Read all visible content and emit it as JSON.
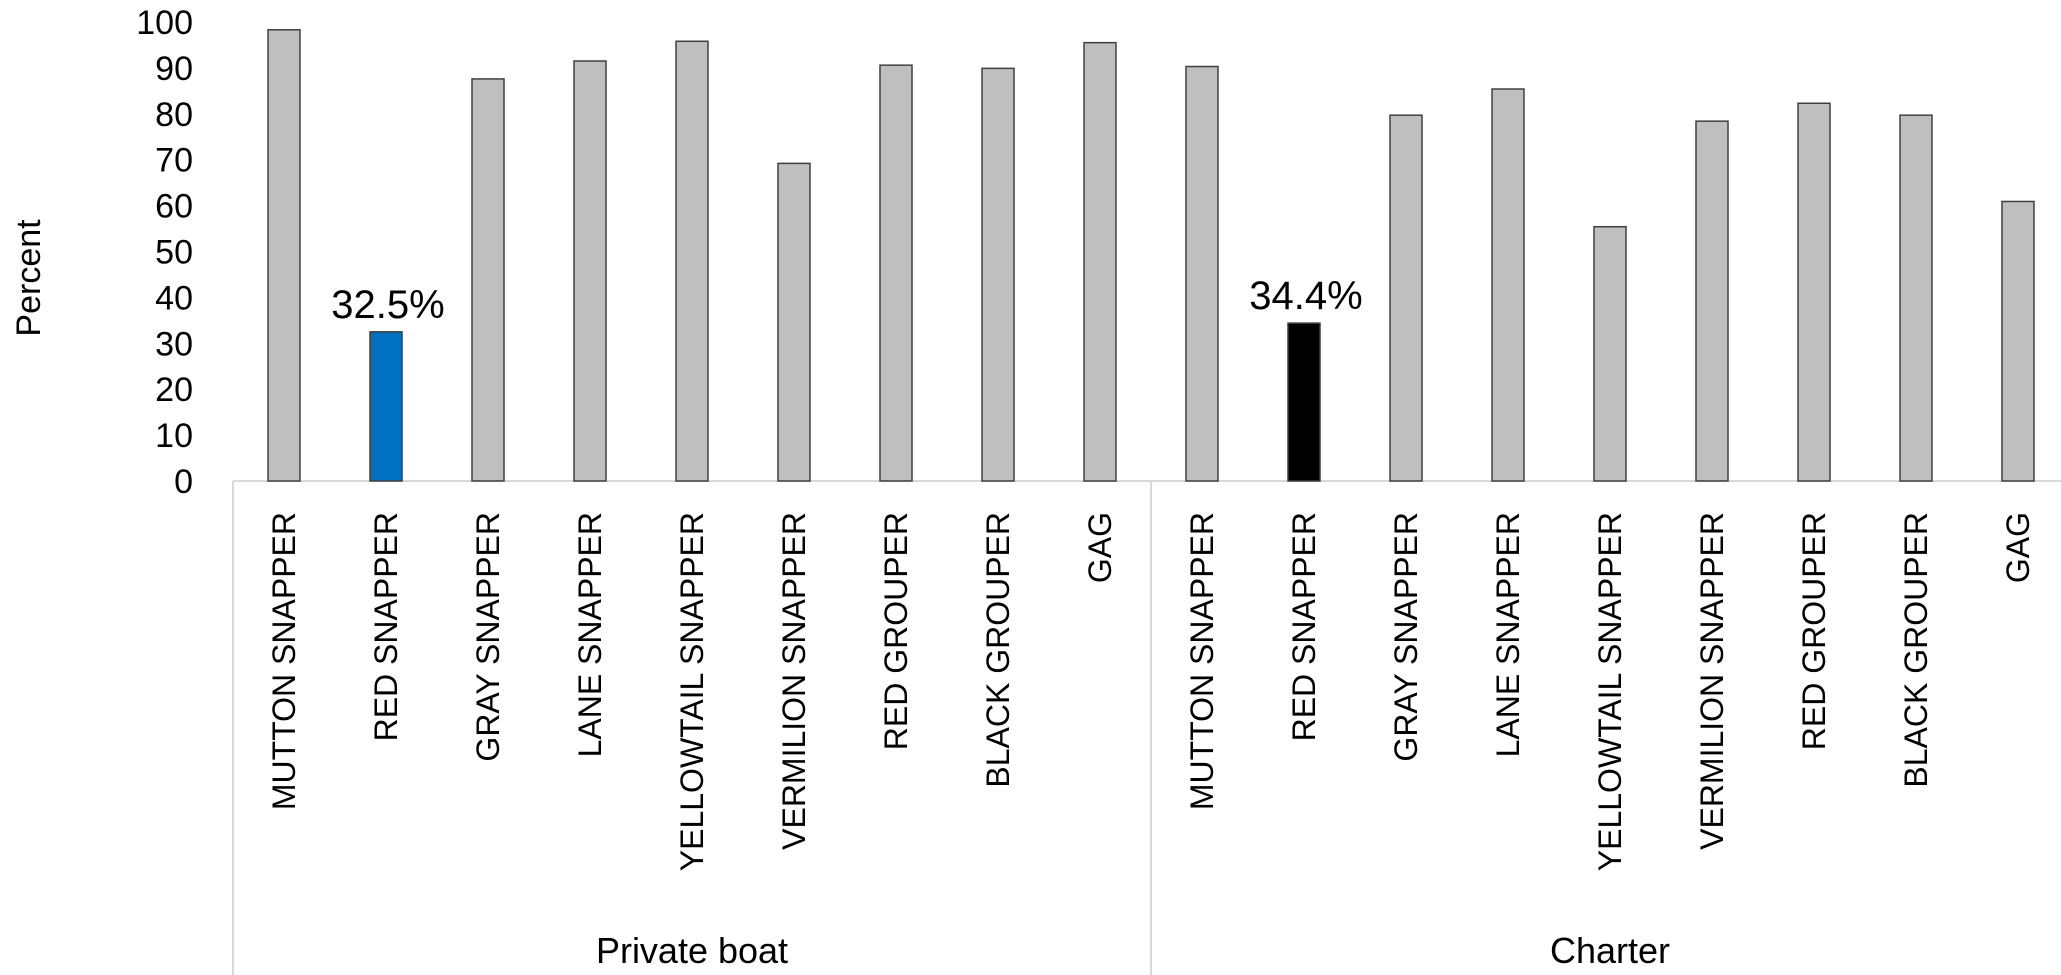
{
  "chart_data": {
    "type": "bar",
    "ylabel": "Percent",
    "xlabel": "",
    "ylim": [
      0,
      100
    ],
    "yticks": [
      0,
      10,
      20,
      30,
      40,
      50,
      60,
      70,
      80,
      90,
      100
    ],
    "grid": false,
    "groups": [
      {
        "name": "Private boat",
        "categories": [
          "MUTTON SNAPPER",
          "RED SNAPPER",
          "GRAY SNAPPER",
          "LANE SNAPPER",
          "YELLOWTAIL SNAPPER",
          "VERMILION SNAPPER",
          "RED GROUPER",
          "BLACK GROUPER",
          "GAG"
        ],
        "values": [
          98.3,
          32.5,
          87.6,
          91.5,
          95.8,
          69.2,
          90.6,
          89.9,
          95.5
        ],
        "highlight": {
          "index": 1,
          "color": "#0070c0",
          "label": "32.5%"
        }
      },
      {
        "name": "Charter",
        "categories": [
          "MUTTON SNAPPER",
          "RED SNAPPER",
          "GRAY SNAPPER",
          "LANE SNAPPER",
          "YELLOWTAIL SNAPPER",
          "VERMILION SNAPPER",
          "RED GROUPER",
          "BLACK GROUPER",
          "GAG"
        ],
        "values": [
          90.3,
          34.4,
          79.7,
          85.4,
          55.4,
          78.4,
          82.3,
          79.7,
          60.9
        ],
        "highlight": {
          "index": 1,
          "color": "#000000",
          "label": "34.4%"
        }
      }
    ],
    "colors": {
      "default_bar": "#bfbfbf",
      "bar_stroke": "#404040",
      "axis": "#d9d9d9"
    }
  }
}
